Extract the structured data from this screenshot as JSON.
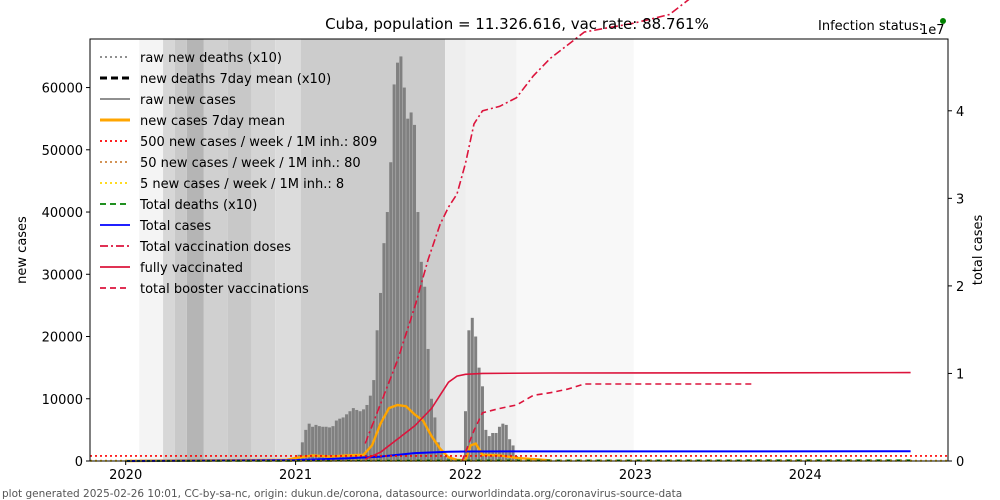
{
  "chart_data": {
    "type": "bar",
    "title": "Cuba, population = 11.326.616, vac rate: 88.761%",
    "status_label": "Infection status:",
    "status_color": "#008000",
    "right_axis_multiplier": "1e7",
    "ylabel_left": "new cases",
    "ylabel_right": "total cases",
    "footer": "plot generated 2025-02-26 10:01, CC-by-sa-nc, origin: dukun.de/corona, datasource: ourworldindata.org/coronavirus-source-data",
    "xlim": [
      2019.79,
      2024.84
    ],
    "ylim_left": [
      0,
      67800
    ],
    "ylim_right": [
      0,
      48200000
    ],
    "x_ticks": [
      {
        "value": 2020,
        "label": "2020"
      },
      {
        "value": 2021,
        "label": "2021"
      },
      {
        "value": 2022,
        "label": "2022"
      },
      {
        "value": 2023,
        "label": "2023"
      },
      {
        "value": 2024,
        "label": "2024"
      }
    ],
    "y_ticks_left": [
      {
        "value": 0,
        "label": "0"
      },
      {
        "value": 10000,
        "label": "10000"
      },
      {
        "value": 20000,
        "label": "20000"
      },
      {
        "value": 30000,
        "label": "30000"
      },
      {
        "value": 40000,
        "label": "40000"
      },
      {
        "value": 50000,
        "label": "50000"
      },
      {
        "value": 60000,
        "label": "60000"
      }
    ],
    "y_ticks_right": [
      {
        "value": 0,
        "label": "0"
      },
      {
        "value": 10000000,
        "label": "1"
      },
      {
        "value": 20000000,
        "label": "2"
      },
      {
        "value": 30000000,
        "label": "3"
      },
      {
        "value": 40000000,
        "label": "4"
      }
    ],
    "background_bands": [
      {
        "x0": 2020.08,
        "x1": 2020.22,
        "shade": "#f4f4f4"
      },
      {
        "x0": 2020.22,
        "x1": 2020.29,
        "shade": "#d7d7d7"
      },
      {
        "x0": 2020.29,
        "x1": 2020.36,
        "shade": "#c9c9c9"
      },
      {
        "x0": 2020.36,
        "x1": 2020.46,
        "shade": "#b5b5b5"
      },
      {
        "x0": 2020.46,
        "x1": 2020.6,
        "shade": "#d0d0d0"
      },
      {
        "x0": 2020.6,
        "x1": 2020.74,
        "shade": "#c8c8c8"
      },
      {
        "x0": 2020.74,
        "x1": 2020.88,
        "shade": "#d4d4d4"
      },
      {
        "x0": 2020.88,
        "x1": 2021.03,
        "shade": "#dcdcdc"
      },
      {
        "x0": 2021.03,
        "x1": 2021.88,
        "shade": "#cccccc"
      },
      {
        "x0": 2021.88,
        "x1": 2022.0,
        "shade": "#eeeeee"
      },
      {
        "x0": 2022.0,
        "x1": 2022.3,
        "shade": "#f2f2f2"
      },
      {
        "x0": 2022.3,
        "x1": 2022.99,
        "shade": "#f8f8f8"
      }
    ],
    "series": [
      {
        "name": "raw new cases",
        "kind": "bars",
        "color": "#808080",
        "x": [
          2021.0,
          2021.02,
          2021.04,
          2021.06,
          2021.08,
          2021.1,
          2021.12,
          2021.14,
          2021.16,
          2021.18,
          2021.2,
          2021.22,
          2021.24,
          2021.26,
          2021.28,
          2021.3,
          2021.32,
          2021.34,
          2021.36,
          2021.38,
          2021.4,
          2021.42,
          2021.44,
          2021.46,
          2021.48,
          2021.5,
          2021.52,
          2021.54,
          2021.56,
          2021.58,
          2021.6,
          2021.62,
          2021.64,
          2021.66,
          2021.68,
          2021.7,
          2021.72,
          2021.74,
          2021.76,
          2021.78,
          2021.8,
          2021.82,
          2021.84,
          2021.86,
          2021.88,
          2021.9,
          2021.92,
          2022.0,
          2022.02,
          2022.04,
          2022.06,
          2022.08,
          2022.1,
          2022.12,
          2022.14,
          2022.16,
          2022.18,
          2022.2,
          2022.22,
          2022.24,
          2022.26,
          2022.28,
          2022.3
        ],
        "values": [
          600,
          1000,
          3000,
          5000,
          6000,
          5500,
          5800,
          5600,
          5500,
          5500,
          5400,
          5600,
          6500,
          6800,
          7000,
          7500,
          8000,
          8500,
          8200,
          8000,
          8300,
          9000,
          10500,
          13000,
          21000,
          27000,
          35000,
          40000,
          48000,
          60500,
          64000,
          65000,
          60000,
          55000,
          56000,
          54000,
          40000,
          32000,
          28000,
          18000,
          10000,
          7000,
          3000,
          1500,
          800,
          500,
          300,
          8000,
          21000,
          23000,
          20000,
          15000,
          12000,
          5000,
          4000,
          4500,
          4500,
          5500,
          6000,
          5800,
          3500,
          2500,
          800
        ]
      },
      {
        "name": "new cases 7day mean",
        "kind": "line",
        "color": "#ffa500",
        "x": [
          2020.0,
          2020.95,
          2021.0,
          2021.1,
          2021.2,
          2021.3,
          2021.4,
          2021.45,
          2021.5,
          2021.55,
          2021.6,
          2021.65,
          2021.7,
          2021.75,
          2021.8,
          2021.85,
          2021.9,
          2021.95,
          2022.0,
          2022.03,
          2022.06,
          2022.1,
          2022.2,
          2022.3,
          2022.4,
          2022.5
        ],
        "values": [
          0,
          200,
          500,
          900,
          700,
          900,
          1000,
          2500,
          6000,
          8500,
          9000,
          8800,
          7500,
          6500,
          4000,
          2000,
          600,
          200,
          100,
          2500,
          2800,
          1000,
          900,
          500,
          300,
          100
        ]
      },
      {
        "name": "Total cases",
        "kind": "line",
        "axis": "right",
        "color": "#0000ff",
        "x": [
          2020.0,
          2021.0,
          2021.3,
          2021.5,
          2021.7,
          2021.9,
          2022.0,
          2022.3,
          2024.62
        ],
        "values": [
          0,
          100000,
          300000,
          500000,
          900000,
          1050000,
          1080000,
          1100000,
          1110000
        ]
      },
      {
        "name": "Total vaccination doses",
        "kind": "line",
        "axis": "right",
        "color": "#dc143c",
        "x": [
          2021.41,
          2021.5,
          2021.6,
          2021.7,
          2021.78,
          2021.85,
          2021.9,
          2021.95,
          2022.0,
          2022.05,
          2022.1,
          2022.2,
          2022.3,
          2022.4,
          2022.5,
          2022.7,
          2022.99,
          2023.2,
          2023.3,
          2023.4,
          2023.7,
          2024.0,
          2024.05,
          2024.62
        ],
        "values": [
          2000000,
          6500000,
          11500000,
          17500000,
          23000000,
          27000000,
          29000000,
          30500000,
          34000000,
          38500000,
          40000000,
          40500000,
          41500000,
          44000000,
          46000000,
          49000000,
          50000000,
          51000000,
          52500000,
          54000000,
          54500000,
          54500000,
          55000000,
          55000000
        ]
      },
      {
        "name": "fully vaccinated",
        "kind": "line",
        "axis": "right",
        "color": "#dc143c",
        "x": [
          2021.41,
          2021.5,
          2021.6,
          2021.7,
          2021.8,
          2021.85,
          2021.9,
          2021.95,
          2022.0,
          2022.1,
          2022.5,
          2024.62
        ],
        "values": [
          200000,
          1000000,
          2500000,
          4000000,
          6000000,
          7500000,
          9000000,
          9700000,
          9900000,
          10000000,
          10050000,
          10100000
        ]
      },
      {
        "name": "total booster vaccinations",
        "kind": "line",
        "axis": "right",
        "color": "#dc143c",
        "x": [
          2021.98,
          2022.05,
          2022.1,
          2022.2,
          2022.3,
          2022.4,
          2022.5,
          2022.6,
          2022.7,
          2023.0,
          2023.7
        ],
        "values": [
          0,
          3500000,
          5500000,
          6000000,
          6400000,
          7500000,
          7800000,
          8200000,
          8800000,
          8800000,
          8800000
        ]
      },
      {
        "name": "Total deaths (x10)",
        "kind": "line",
        "axis": "right",
        "color": "#008000",
        "x": [
          2020.0,
          2021.0,
          2021.5,
          2022.0,
          2024.62
        ],
        "values": [
          0,
          10000,
          40000,
          85000,
          86000
        ]
      },
      {
        "name": "500 new cases / week / 1M inh.: 809",
        "kind": "hline",
        "color": "#ff0000",
        "value": 809
      },
      {
        "name": "50 new cases / week / 1M inh.: 80",
        "kind": "hline",
        "color": "#cd853f",
        "value": 80
      },
      {
        "name": "5 new cases / week / 1M inh.: 8",
        "kind": "hline",
        "color": "#ffd700",
        "value": 8
      }
    ],
    "legend": {
      "placement": "top-left",
      "entries": [
        {
          "label": "raw new deaths (x10)",
          "color": "#808080",
          "style": "dotted"
        },
        {
          "label": "new deaths 7day mean (x10)",
          "color": "#000000",
          "style": "dashed-thick"
        },
        {
          "label": "raw new cases",
          "color": "#808080",
          "style": "solid"
        },
        {
          "label": "new cases 7day mean",
          "color": "#ffa500",
          "style": "solid-thick"
        },
        {
          "label": "500 new cases / week / 1M inh.: 809",
          "color": "#ff0000",
          "style": "dotted"
        },
        {
          "label": "50 new cases / week / 1M inh.: 80",
          "color": "#cd853f",
          "style": "dotted"
        },
        {
          "label": "5 new cases / week / 1M inh.: 8",
          "color": "#ffd700",
          "style": "dotted"
        },
        {
          "label": "Total deaths (x10)",
          "color": "#008000",
          "style": "dashed"
        },
        {
          "label": "Total cases",
          "color": "#0000ff",
          "style": "solid"
        },
        {
          "label": "Total vaccination doses",
          "color": "#dc143c",
          "style": "dashdot"
        },
        {
          "label": "fully vaccinated",
          "color": "#dc143c",
          "style": "solid"
        },
        {
          "label": "total booster vaccinations",
          "color": "#dc143c",
          "style": "dashed"
        }
      ]
    }
  }
}
